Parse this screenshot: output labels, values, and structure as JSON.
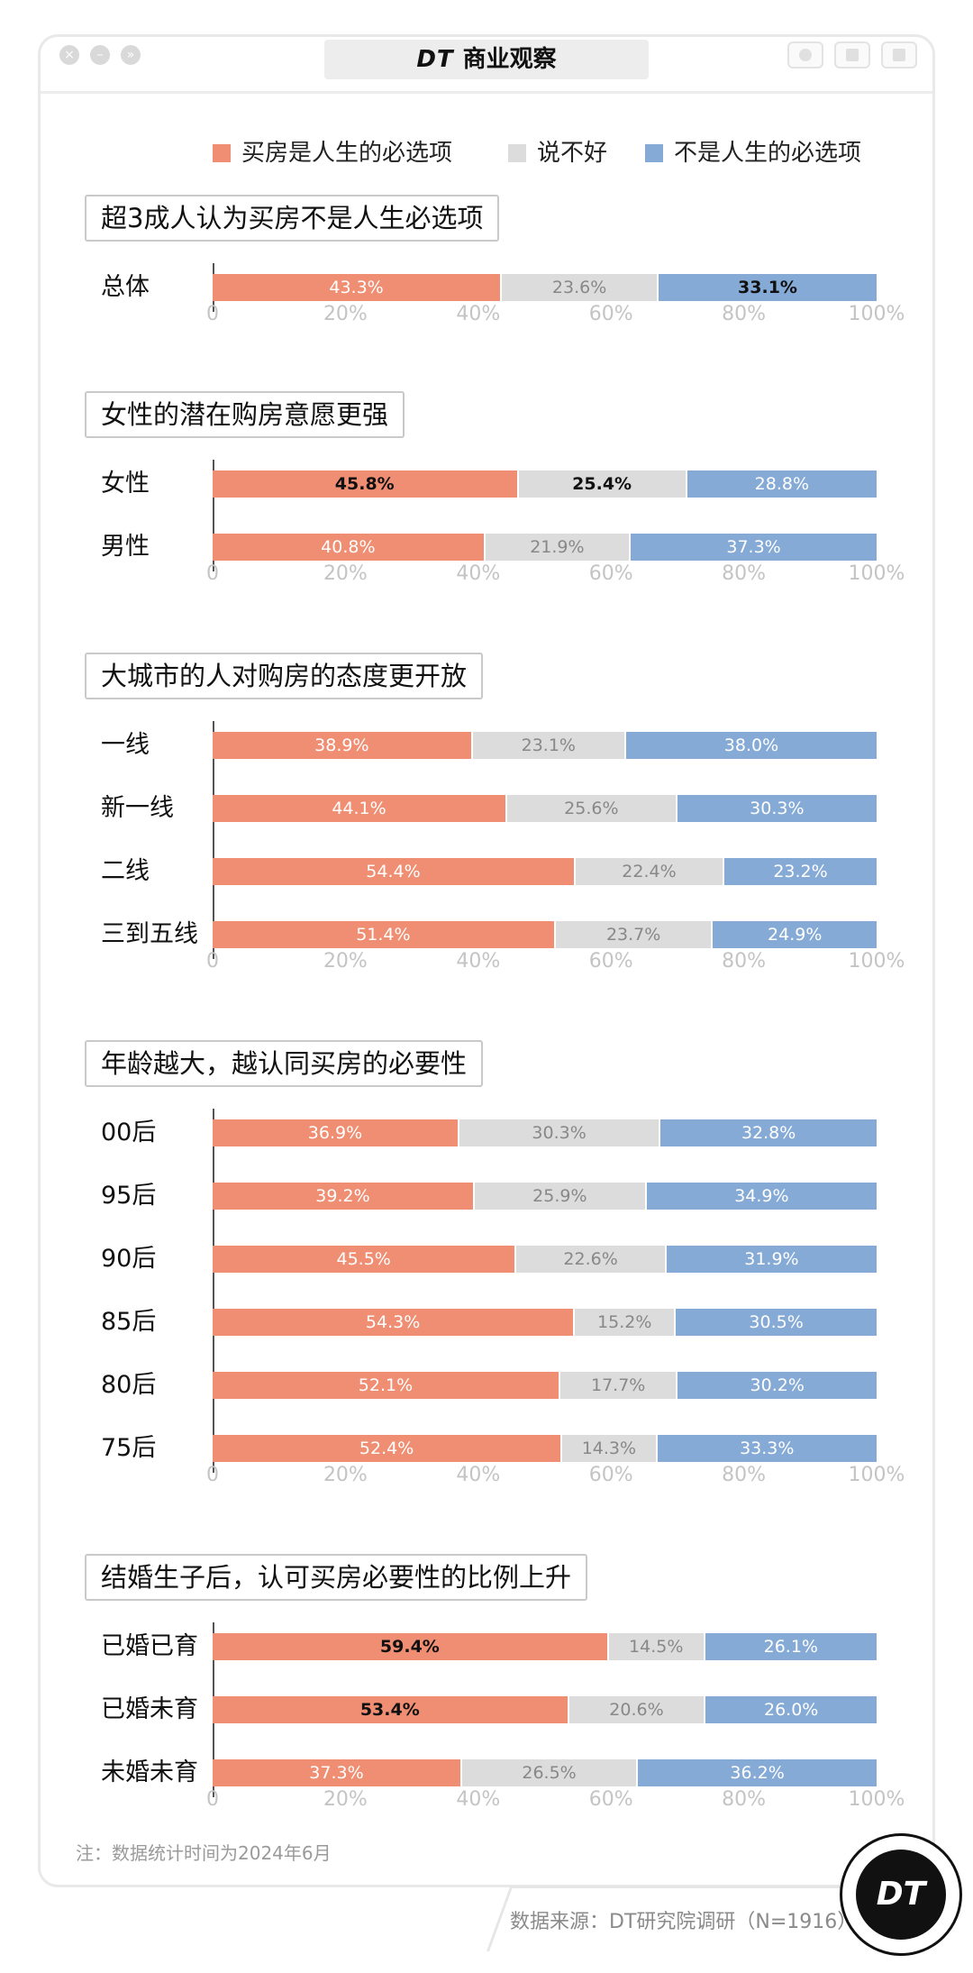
{
  "window": {
    "brand_mark": "DT",
    "title": "商业观察"
  },
  "legend": [
    {
      "label": "买房是人生的必选项",
      "color": "#ef8e72"
    },
    {
      "label": "说不好",
      "color": "#dcdcdc"
    },
    {
      "label": "不是人生的必选项",
      "color": "#85aad6"
    }
  ],
  "chart_data": [
    {
      "type": "bar",
      "stacked": true,
      "orientation": "horizontal",
      "title": "超3成人认为买房不是人生必选项",
      "categories": [
        "总体"
      ],
      "series": [
        {
          "name": "买房是人生的必选项",
          "values": [
            43.3
          ]
        },
        {
          "name": "说不好",
          "values": [
            23.6
          ]
        },
        {
          "name": "不是人生的必选项",
          "values": [
            33.1
          ]
        }
      ],
      "xlim": [
        0,
        100
      ],
      "ticks": [
        "0",
        "20%",
        "40%",
        "60%",
        "80%",
        "100%"
      ]
    },
    {
      "type": "bar",
      "stacked": true,
      "orientation": "horizontal",
      "title": "女性的潜在购房意愿更强",
      "categories": [
        "女性",
        "男性"
      ],
      "series": [
        {
          "name": "买房是人生的必选项",
          "values": [
            45.8,
            40.8
          ]
        },
        {
          "name": "说不好",
          "values": [
            25.4,
            21.9
          ]
        },
        {
          "name": "不是人生的必选项",
          "values": [
            28.8,
            37.3
          ]
        }
      ],
      "xlim": [
        0,
        100
      ],
      "ticks": [
        "0",
        "20%",
        "40%",
        "60%",
        "80%",
        "100%"
      ]
    },
    {
      "type": "bar",
      "stacked": true,
      "orientation": "horizontal",
      "title": "大城市的人对购房的态度更开放",
      "categories": [
        "一线",
        "新一线",
        "二线",
        "三到五线"
      ],
      "series": [
        {
          "name": "买房是人生的必选项",
          "values": [
            38.9,
            44.1,
            54.4,
            51.4
          ]
        },
        {
          "name": "说不好",
          "values": [
            23.1,
            25.6,
            22.4,
            23.7
          ]
        },
        {
          "name": "不是人生的必选项",
          "values": [
            38.0,
            30.3,
            23.2,
            24.9
          ]
        }
      ],
      "xlim": [
        0,
        100
      ],
      "ticks": [
        "0",
        "20%",
        "40%",
        "60%",
        "80%",
        "100%"
      ]
    },
    {
      "type": "bar",
      "stacked": true,
      "orientation": "horizontal",
      "title": "年龄越大，越认同买房的必要性",
      "categories": [
        "00后",
        "95后",
        "90后",
        "85后",
        "80后",
        "75后"
      ],
      "series": [
        {
          "name": "买房是人生的必选项",
          "values": [
            36.9,
            39.2,
            45.5,
            54.3,
            52.1,
            52.4
          ]
        },
        {
          "name": "说不好",
          "values": [
            30.3,
            25.9,
            22.6,
            15.2,
            17.7,
            14.3
          ]
        },
        {
          "name": "不是人生的必选项",
          "values": [
            32.8,
            34.9,
            31.9,
            30.5,
            30.2,
            33.3
          ]
        }
      ],
      "xlim": [
        0,
        100
      ],
      "ticks": [
        "0",
        "20%",
        "40%",
        "60%",
        "80%",
        "100%"
      ]
    },
    {
      "type": "bar",
      "stacked": true,
      "orientation": "horizontal",
      "title": "结婚生子后，认可买房必要性的比例上升",
      "categories": [
        "已婚已育",
        "已婚未育",
        "未婚未育"
      ],
      "series": [
        {
          "name": "买房是人生的必选项",
          "values": [
            59.4,
            53.4,
            37.3
          ]
        },
        {
          "name": "说不好",
          "values": [
            14.5,
            20.6,
            26.5
          ]
        },
        {
          "name": "不是人生的必选项",
          "values": [
            26.1,
            26.0,
            36.2
          ]
        }
      ],
      "xlim": [
        0,
        100
      ],
      "ticks": [
        "0",
        "20%",
        "40%",
        "60%",
        "80%",
        "100%"
      ]
    }
  ],
  "footer": {
    "note": "注：数据统计时间为2024年6月",
    "source": "数据来源：DT研究院调研（N=1916）",
    "badge": "DT"
  }
}
